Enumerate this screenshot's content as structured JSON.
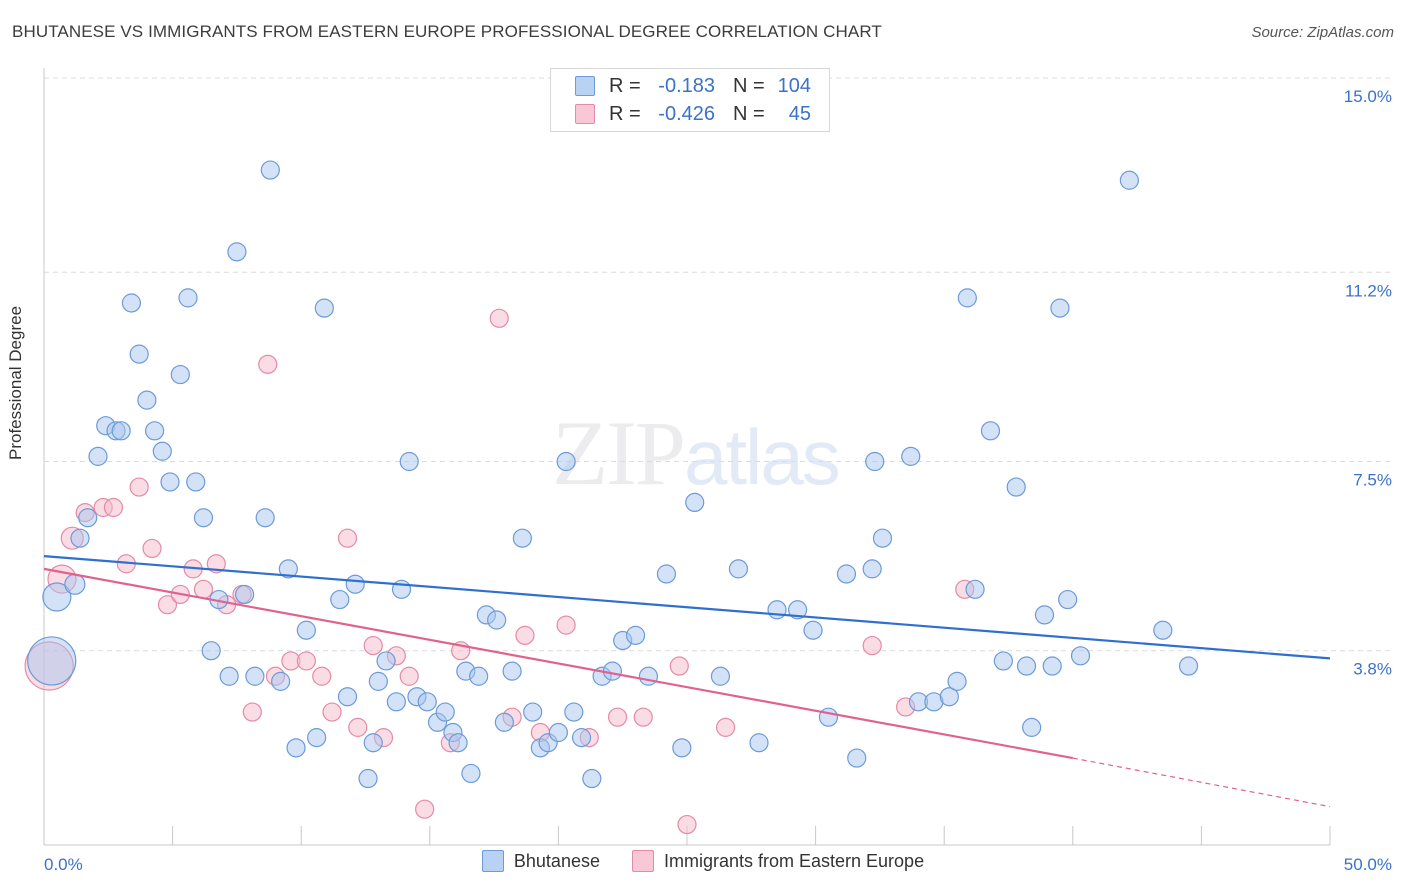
{
  "chart_data": {
    "type": "scatter",
    "title": "BHUTANESE VS IMMIGRANTS FROM EASTERN EUROPE PROFESSIONAL DEGREE CORRELATION CHART",
    "source": "Source: ZipAtlas.com",
    "xlabel": "",
    "ylabel": "Professional Degree",
    "xlim": [
      0,
      50
    ],
    "ylim": [
      0,
      15
    ],
    "x_tick_labels": [
      "0.0%",
      "50.0%"
    ],
    "y_tick_values": [
      3.8,
      7.5,
      11.2,
      15.0
    ],
    "y_tick_labels": [
      "3.8%",
      "7.5%",
      "11.2%",
      "15.0%"
    ],
    "grid": true,
    "watermark": {
      "zip": "ZIP",
      "atlas": "atlas"
    },
    "legend": [
      {
        "series": "Bhutanese",
        "r_label": "R =",
        "r_value": "-0.183",
        "n_label": "N =",
        "n_value": "104"
      },
      {
        "series": "Immigrants from Eastern Europe",
        "r_label": "R =",
        "r_value": "-0.426",
        "n_label": "N =",
        "n_value": "45"
      }
    ],
    "colors": {
      "blue_fill": "#a9c6ef",
      "blue_stroke": "#6b9bd8",
      "blue_line": "#2f6fcf",
      "pink_fill": "#f5b9cc",
      "pink_stroke": "#e58aa7",
      "pink_line": "#e0628f",
      "grid": "#dcdcdc",
      "tick_text": "#3a72c9"
    },
    "series": [
      {
        "name": "Bhutanese",
        "trend": {
          "x0": 0,
          "y0": 5.65,
          "x1": 50,
          "y1": 3.65
        },
        "points": [
          [
            0.3,
            3.6,
            24
          ],
          [
            0.5,
            4.85,
            14
          ],
          [
            1.2,
            5.1,
            10
          ],
          [
            1.4,
            6.0,
            9
          ],
          [
            1.7,
            6.4,
            9
          ],
          [
            2.1,
            7.6,
            9
          ],
          [
            2.4,
            8.2,
            9
          ],
          [
            2.8,
            8.1,
            9
          ],
          [
            3.0,
            8.1,
            9
          ],
          [
            3.4,
            10.6,
            9
          ],
          [
            3.7,
            9.6,
            9
          ],
          [
            4.0,
            8.7,
            9
          ],
          [
            4.3,
            8.1,
            9
          ],
          [
            4.6,
            7.7,
            9
          ],
          [
            4.9,
            7.1,
            9
          ],
          [
            5.3,
            9.2,
            9
          ],
          [
            5.6,
            10.7,
            9
          ],
          [
            5.9,
            7.1,
            9
          ],
          [
            6.2,
            6.4,
            9
          ],
          [
            6.5,
            3.8,
            9
          ],
          [
            6.8,
            4.8,
            9
          ],
          [
            7.2,
            3.3,
            9
          ],
          [
            7.5,
            11.6,
            9
          ],
          [
            7.8,
            4.9,
            9
          ],
          [
            8.2,
            3.3,
            9
          ],
          [
            8.6,
            6.4,
            9
          ],
          [
            8.8,
            13.2,
            9
          ],
          [
            9.2,
            3.2,
            9
          ],
          [
            9.5,
            5.4,
            9
          ],
          [
            9.8,
            1.9,
            9
          ],
          [
            10.2,
            4.2,
            9
          ],
          [
            10.6,
            2.1,
            9
          ],
          [
            10.9,
            10.5,
            9
          ],
          [
            11.5,
            4.8,
            9
          ],
          [
            11.8,
            2.9,
            9
          ],
          [
            12.1,
            5.1,
            9
          ],
          [
            12.6,
            1.3,
            9
          ],
          [
            12.8,
            2.0,
            9
          ],
          [
            13.0,
            3.2,
            9
          ],
          [
            13.3,
            3.6,
            9
          ],
          [
            13.7,
            2.8,
            9
          ],
          [
            13.9,
            5.0,
            9
          ],
          [
            14.2,
            7.5,
            9
          ],
          [
            14.5,
            2.9,
            9
          ],
          [
            14.9,
            2.8,
            9
          ],
          [
            15.3,
            2.4,
            9
          ],
          [
            15.6,
            2.6,
            9
          ],
          [
            15.9,
            2.2,
            9
          ],
          [
            16.1,
            2.0,
            9
          ],
          [
            16.4,
            3.4,
            9
          ],
          [
            16.6,
            1.4,
            9
          ],
          [
            16.9,
            3.3,
            9
          ],
          [
            17.2,
            4.5,
            9
          ],
          [
            17.6,
            4.4,
            9
          ],
          [
            17.9,
            2.4,
            9
          ],
          [
            18.2,
            3.4,
            9
          ],
          [
            18.6,
            6.0,
            9
          ],
          [
            19.0,
            2.6,
            9
          ],
          [
            19.3,
            1.9,
            9
          ],
          [
            19.6,
            2.0,
            9
          ],
          [
            20.0,
            2.2,
            9
          ],
          [
            20.3,
            7.5,
            9
          ],
          [
            20.6,
            2.6,
            9
          ],
          [
            20.9,
            2.1,
            9
          ],
          [
            21.3,
            1.3,
            9
          ],
          [
            21.7,
            3.3,
            9
          ],
          [
            22.1,
            3.4,
            9
          ],
          [
            22.5,
            4.0,
            9
          ],
          [
            23.0,
            4.1,
            9
          ],
          [
            23.5,
            3.3,
            9
          ],
          [
            24.2,
            5.3,
            9
          ],
          [
            24.8,
            1.9,
            9
          ],
          [
            25.3,
            6.7,
            9
          ],
          [
            26.3,
            3.3,
            9
          ],
          [
            27.0,
            5.4,
            9
          ],
          [
            27.8,
            2.0,
            9
          ],
          [
            28.5,
            4.6,
            9
          ],
          [
            29.3,
            4.6,
            9
          ],
          [
            29.9,
            4.2,
            9
          ],
          [
            30.5,
            2.5,
            9
          ],
          [
            31.2,
            5.3,
            9
          ],
          [
            31.6,
            1.7,
            9
          ],
          [
            32.2,
            5.4,
            9
          ],
          [
            32.6,
            6.0,
            9
          ],
          [
            32.3,
            7.5,
            9
          ],
          [
            33.7,
            7.6,
            9
          ],
          [
            34.0,
            2.8,
            9
          ],
          [
            34.6,
            2.8,
            9
          ],
          [
            35.2,
            2.9,
            9
          ],
          [
            35.5,
            3.2,
            9
          ],
          [
            35.9,
            10.7,
            9
          ],
          [
            36.2,
            5.0,
            9
          ],
          [
            36.8,
            8.1,
            9
          ],
          [
            37.3,
            3.6,
            9
          ],
          [
            37.8,
            7.0,
            9
          ],
          [
            38.2,
            3.5,
            9
          ],
          [
            38.4,
            2.3,
            9
          ],
          [
            38.9,
            4.5,
            9
          ],
          [
            39.2,
            3.5,
            9
          ],
          [
            39.5,
            10.5,
            9
          ],
          [
            39.8,
            4.8,
            9
          ],
          [
            40.3,
            3.7,
            9
          ],
          [
            42.2,
            13.0,
            9
          ],
          [
            43.5,
            4.2,
            9
          ],
          [
            44.5,
            3.5,
            9
          ]
        ]
      },
      {
        "name": "Immigrants from Eastern Europe",
        "trend": {
          "x0": 0,
          "y0": 5.4,
          "x1": 40,
          "y1": 1.7
        },
        "trend_dashed": {
          "x0": 40,
          "y0": 1.7,
          "x1": 50,
          "y1": 0.75
        },
        "points": [
          [
            0.2,
            3.5,
            24
          ],
          [
            0.7,
            5.2,
            14
          ],
          [
            1.1,
            6.0,
            11
          ],
          [
            1.6,
            6.5,
            9
          ],
          [
            2.3,
            6.6,
            9
          ],
          [
            2.7,
            6.6,
            9
          ],
          [
            3.2,
            5.5,
            9
          ],
          [
            3.7,
            7.0,
            9
          ],
          [
            4.2,
            5.8,
            9
          ],
          [
            4.8,
            4.7,
            9
          ],
          [
            5.3,
            4.9,
            9
          ],
          [
            5.8,
            5.4,
            9
          ],
          [
            6.2,
            5.0,
            9
          ],
          [
            6.7,
            5.5,
            9
          ],
          [
            7.1,
            4.7,
            9
          ],
          [
            7.7,
            4.9,
            9
          ],
          [
            8.1,
            2.6,
            9
          ],
          [
            8.7,
            9.4,
            9
          ],
          [
            9.0,
            3.3,
            9
          ],
          [
            9.6,
            3.6,
            9
          ],
          [
            10.2,
            3.6,
            9
          ],
          [
            10.8,
            3.3,
            9
          ],
          [
            11.2,
            2.6,
            9
          ],
          [
            11.8,
            6.0,
            9
          ],
          [
            12.2,
            2.3,
            9
          ],
          [
            12.8,
            3.9,
            9
          ],
          [
            13.2,
            2.1,
            9
          ],
          [
            13.7,
            3.7,
            9
          ],
          [
            14.2,
            3.3,
            9
          ],
          [
            14.8,
            0.7,
            9
          ],
          [
            15.8,
            2.0,
            9
          ],
          [
            16.2,
            3.8,
            9
          ],
          [
            17.7,
            10.3,
            9
          ],
          [
            18.2,
            2.5,
            9
          ],
          [
            18.7,
            4.1,
            9
          ],
          [
            19.3,
            2.2,
            9
          ],
          [
            20.3,
            4.3,
            9
          ],
          [
            21.2,
            2.1,
            9
          ],
          [
            22.3,
            2.5,
            9
          ],
          [
            23.3,
            2.5,
            9
          ],
          [
            24.7,
            3.5,
            9
          ],
          [
            25.0,
            0.4,
            9
          ],
          [
            26.5,
            2.3,
            9
          ],
          [
            32.2,
            3.9,
            9
          ],
          [
            33.5,
            2.7,
            9
          ],
          [
            35.8,
            5.0,
            9
          ]
        ]
      }
    ]
  }
}
